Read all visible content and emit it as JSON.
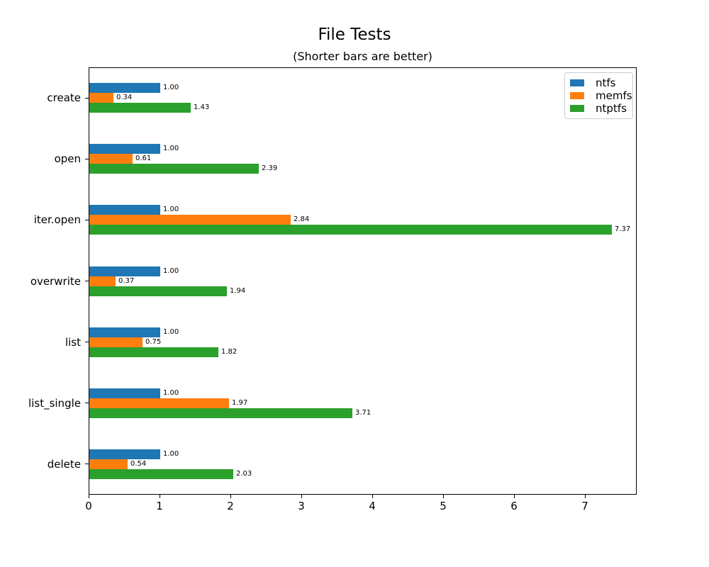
{
  "chart_data": {
    "type": "bar",
    "orientation": "horizontal",
    "title": "File Tests",
    "subtitle": "(Shorter bars are better)",
    "categories": [
      "create",
      "open",
      "iter.open",
      "overwrite",
      "list",
      "list_single",
      "delete"
    ],
    "series": [
      {
        "name": "ntfs",
        "color": "#1f77b4",
        "values": [
          1.0,
          1.0,
          1.0,
          1.0,
          1.0,
          1.0,
          1.0
        ]
      },
      {
        "name": "memfs",
        "color": "#ff7f0e",
        "values": [
          0.34,
          0.61,
          2.84,
          0.37,
          0.75,
          1.97,
          0.54
        ]
      },
      {
        "name": "ntptfs",
        "color": "#2ca02c",
        "values": [
          1.43,
          2.39,
          7.37,
          1.94,
          1.82,
          3.71,
          2.03
        ]
      }
    ],
    "bar_value_label_format": "two-decimals",
    "xlabel": "",
    "ylabel": "",
    "xlim": [
      0,
      7.73
    ],
    "xticks": [
      0,
      1,
      2,
      3,
      4,
      5,
      6,
      7
    ],
    "grid": false,
    "legend_position": "upper right",
    "axis_color": "#000000",
    "background_color": "#ffffff"
  }
}
